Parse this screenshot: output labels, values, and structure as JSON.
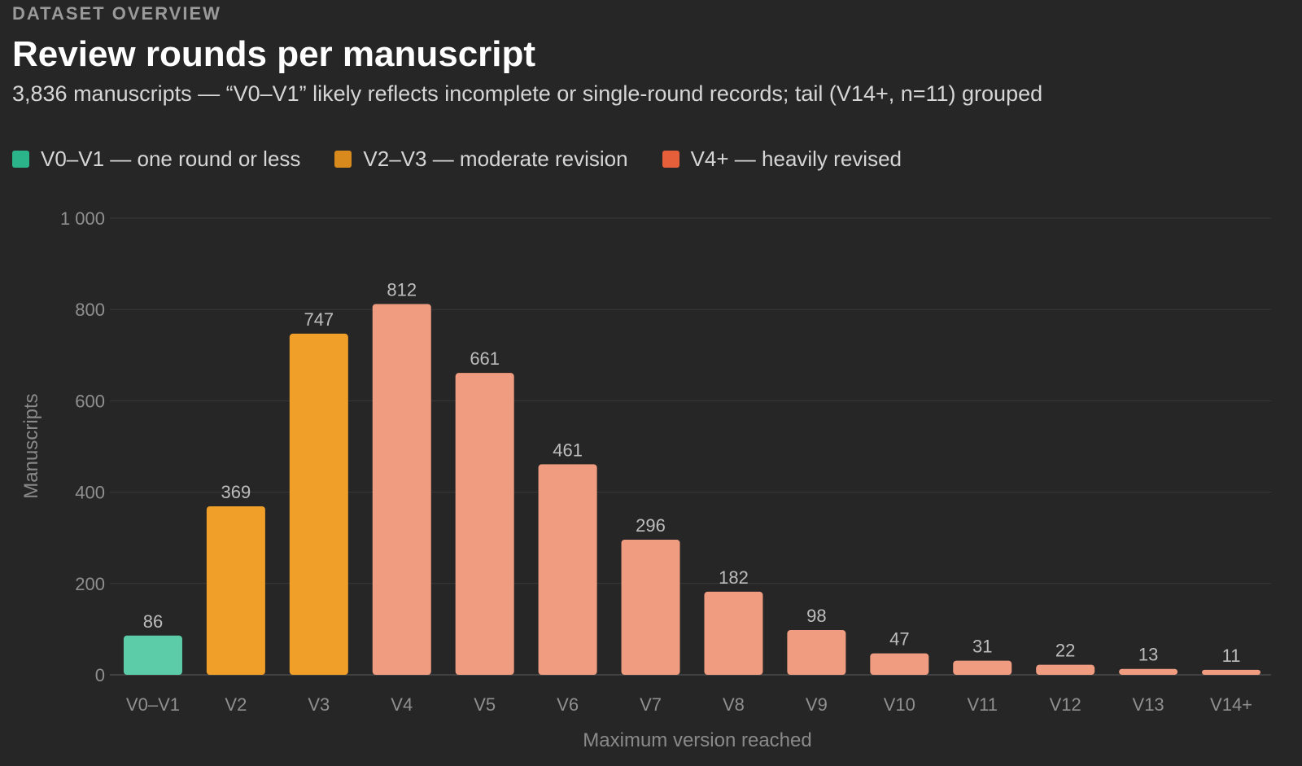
{
  "header": {
    "eyebrow": "DATASET OVERVIEW",
    "title": "Review rounds per manuscript",
    "subtitle": "3,836 manuscripts — “V0–V1” likely reflects incomplete or single-round records; tail (V14+, n=11) grouped"
  },
  "legend": [
    {
      "label": "V0–V1 — one round or less",
      "color": "#2bb38a"
    },
    {
      "label": "V2–V3 — moderate revision",
      "color": "#d98a1c"
    },
    {
      "label": "V4+ — heavily revised",
      "color": "#e5603a"
    }
  ],
  "chart_data": {
    "type": "bar",
    "categories": [
      "V0–V1",
      "V2",
      "V3",
      "V4",
      "V5",
      "V6",
      "V7",
      "V8",
      "V9",
      "V10",
      "V11",
      "V12",
      "V13",
      "V14+"
    ],
    "values": [
      86,
      369,
      747,
      812,
      661,
      461,
      296,
      182,
      98,
      47,
      31,
      22,
      13,
      11
    ],
    "groups": [
      0,
      1,
      1,
      2,
      2,
      2,
      2,
      2,
      2,
      2,
      2,
      2,
      2,
      2
    ],
    "group_colors": [
      "#5ccca8",
      "#f0a028",
      "#f09c80"
    ],
    "xlabel": "Maximum version reached",
    "ylabel": "Manuscripts",
    "ylim": [
      0,
      1000
    ],
    "yticks": [
      0,
      200,
      400,
      600,
      800,
      1000
    ],
    "ytick_labels": [
      "0",
      "200",
      "400",
      "600",
      "800",
      "1 000"
    ],
    "grid": true,
    "legend_position": "top-left"
  }
}
